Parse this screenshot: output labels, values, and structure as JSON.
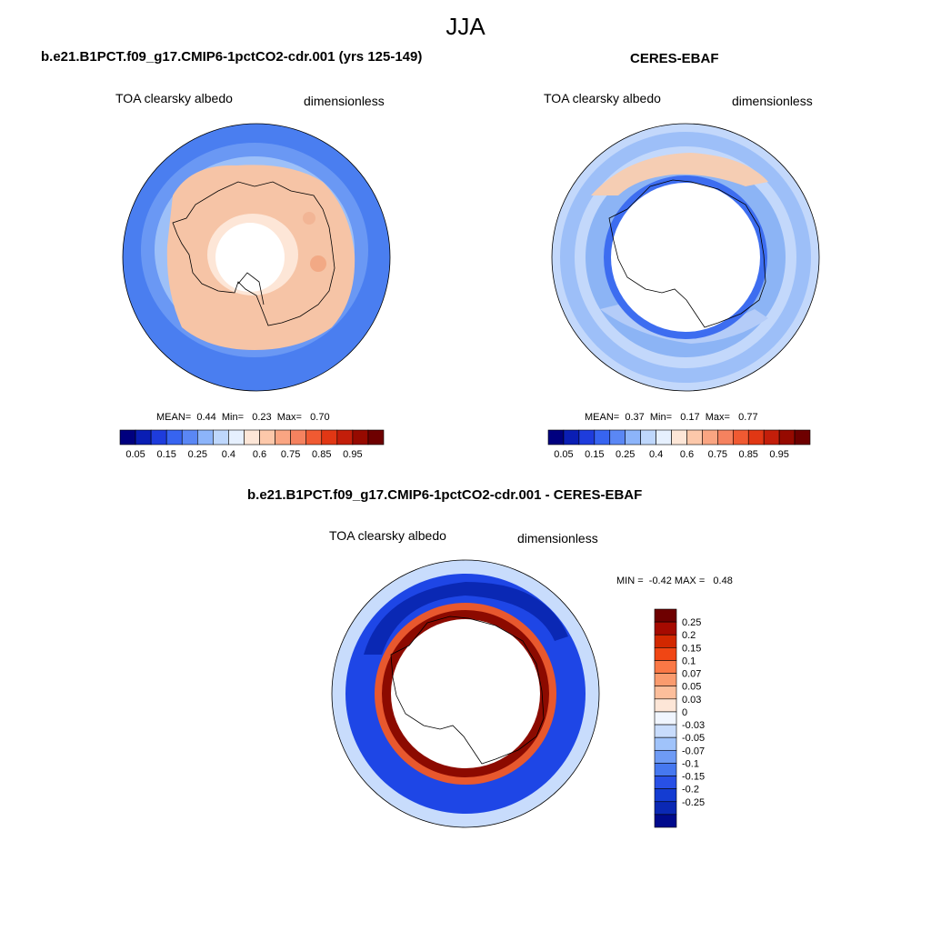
{
  "figure": {
    "title": "JJA",
    "panels": [
      {
        "title": "b.e21.B1PCT.f09_g17.CMIP6-1pctCO2-cdr.001 (yrs 125-149)",
        "variable": "TOA clearsky albedo",
        "units": "dimensionless",
        "stats": {
          "mean_label": "MEAN=",
          "mean": "0.44",
          "min_label": "Min=",
          "min": "0.23",
          "max_label": "Max=",
          "max": "0.70"
        }
      },
      {
        "title": "CERES-EBAF",
        "variable": "TOA clearsky albedo",
        "units": "dimensionless",
        "stats": {
          "mean_label": "MEAN=",
          "mean": "0.37",
          "min_label": "Min=",
          "min": "0.17",
          "max_label": "Max=",
          "max": "0.77"
        }
      },
      {
        "title": "b.e21.B1PCT.f09_g17.CMIP6-1pctCO2-cdr.001 - CERES-EBAF",
        "variable": "TOA clearsky albedo",
        "units": "dimensionless",
        "stats": {
          "min_label": "MIN =",
          "min": "-0.42",
          "max_label": "MAX =",
          "max": "0.48"
        }
      }
    ],
    "colorbar_abs": {
      "colors": [
        "#00007f",
        "#0a1eb4",
        "#1e3cdc",
        "#3764f0",
        "#5a87f5",
        "#8cb4fa",
        "#bed7fc",
        "#e6f0fe",
        "#fde6d7",
        "#fcc8aa",
        "#faa582",
        "#f5825f",
        "#f05a32",
        "#e13714",
        "#c31e0a",
        "#960a00",
        "#6e0000"
      ],
      "labels": [
        "0.05",
        "0.15",
        "0.25",
        "0.4",
        "0.6",
        "0.75",
        "0.85",
        "0.95"
      ]
    },
    "colorbar_diff": {
      "colors": [
        "#6e0000",
        "#a50a00",
        "#d22800",
        "#f04614",
        "#fa7846",
        "#fa9b6e",
        "#fcbe9b",
        "#fde6d7",
        "#f0f5fe",
        "#c8dcfc",
        "#a0c3fa",
        "#6e9bf5",
        "#4678f0",
        "#2850e6",
        "#143cd2",
        "#0a28b4",
        "#000a8c"
      ],
      "labels": [
        "0.25",
        "0.2",
        "0.15",
        "0.1",
        "0.07",
        "0.05",
        "0.03",
        "0",
        "-0.03",
        "-0.05",
        "-0.07",
        "-0.1",
        "-0.15",
        "-0.2",
        "-0.25"
      ]
    }
  }
}
